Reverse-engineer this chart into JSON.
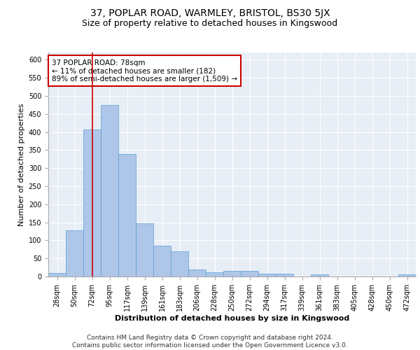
{
  "title_line1": "37, POPLAR ROAD, WARMLEY, BRISTOL, BS30 5JX",
  "title_line2": "Size of property relative to detached houses in Kingswood",
  "xlabel": "Distribution of detached houses by size in Kingswood",
  "ylabel": "Number of detached properties",
  "categories": [
    "28sqm",
    "50sqm",
    "72sqm",
    "95sqm",
    "117sqm",
    "139sqm",
    "161sqm",
    "183sqm",
    "206sqm",
    "228sqm",
    "250sqm",
    "272sqm",
    "294sqm",
    "317sqm",
    "339sqm",
    "361sqm",
    "383sqm",
    "405sqm",
    "428sqm",
    "450sqm",
    "472sqm"
  ],
  "values": [
    10,
    127,
    407,
    475,
    340,
    148,
    86,
    70,
    20,
    12,
    15,
    15,
    8,
    7,
    0,
    5,
    0,
    0,
    0,
    0,
    6
  ],
  "bar_color": "#aec6e8",
  "bar_edge_color": "#5a9fd4",
  "highlight_x": "72sqm",
  "highlight_line_color": "#cc0000",
  "annotation_text": "37 POPLAR ROAD: 78sqm\n← 11% of detached houses are smaller (182)\n89% of semi-detached houses are larger (1,509) →",
  "annotation_box_color": "#ffffff",
  "annotation_box_edge": "#cc0000",
  "ylim": [
    0,
    620
  ],
  "yticks": [
    0,
    50,
    100,
    150,
    200,
    250,
    300,
    350,
    400,
    450,
    500,
    550,
    600
  ],
  "background_color": "#e8eef6",
  "grid_color": "#ffffff",
  "footer_line1": "Contains HM Land Registry data © Crown copyright and database right 2024.",
  "footer_line2": "Contains public sector information licensed under the Open Government Licence v3.0.",
  "title_fontsize": 10,
  "subtitle_fontsize": 9,
  "axis_label_fontsize": 8,
  "tick_fontsize": 7,
  "annotation_fontsize": 7.5,
  "footer_fontsize": 6.5
}
